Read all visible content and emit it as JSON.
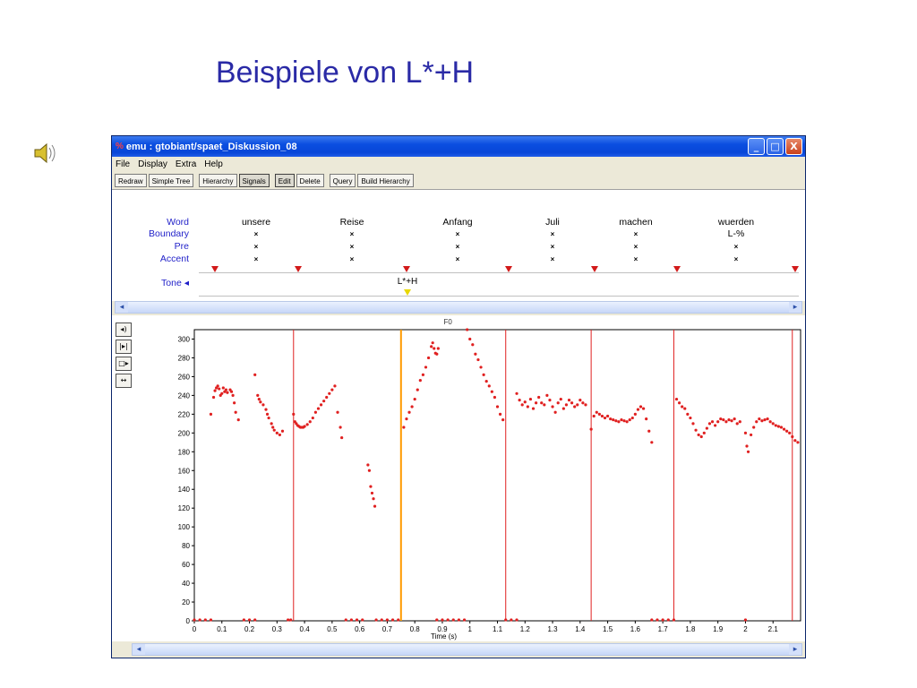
{
  "slide": {
    "title": "Beispiele von L*+H",
    "speaker_icon": "speaker-icon"
  },
  "window": {
    "title": "emu : gtobiant/spaet_Diskussion_08",
    "app_icon": "emu-app-icon",
    "buttons": [
      "_",
      "□",
      "X"
    ]
  },
  "menu": [
    "File",
    "Display",
    "Extra",
    "Help"
  ],
  "toolbar": [
    "Redraw",
    "Simple Tree",
    "Hierarchy",
    "Signals",
    "Edit",
    "Delete",
    "Query",
    "Build Hierarchy"
  ],
  "toolbar_active": [
    "Signals",
    "Edit"
  ],
  "tiers": {
    "labels": [
      "Word",
      "Boundary",
      "Pre",
      "Accent"
    ],
    "words": [
      "unsere",
      "Reise",
      "Anfang",
      "Juli",
      "machen",
      "wuerden"
    ],
    "boundary": [
      "×",
      "×",
      "×",
      "×",
      "×",
      "L-%"
    ],
    "pre": [
      "×",
      "×",
      "×",
      "×",
      "×",
      "×"
    ],
    "accent": [
      "×",
      "×",
      "×",
      "×",
      "×",
      "×"
    ],
    "tone_label": "Tone ◂",
    "tone_value": "L*+H"
  },
  "colors": {
    "accent_red": "#e02020",
    "tier_label_blue": "#1f1fc8",
    "orange_boundary": "#ff9a00"
  },
  "side_tools": [
    "speaker-volume-icon",
    "zoom-fit-icon",
    "zoom-right-icon",
    "zoom-out-icon"
  ],
  "chart_data": {
    "type": "scatter",
    "title": "F0",
    "xlabel": "Time (s)",
    "ylabel": "",
    "xlim": [
      0,
      2.2
    ],
    "ylim": [
      0,
      310
    ],
    "xticks": [
      0,
      0.1,
      0.2,
      0.3,
      0.4,
      0.5,
      0.6,
      0.7,
      0.8,
      0.9,
      1,
      1.1,
      1.2,
      1.3,
      1.4,
      1.5,
      1.6,
      1.7,
      1.8,
      1.9,
      2,
      2.1
    ],
    "yticks": [
      0,
      20,
      40,
      60,
      80,
      100,
      120,
      140,
      160,
      180,
      200,
      220,
      240,
      260,
      280,
      300
    ],
    "boundaries": [
      0.36,
      0.75,
      1.13,
      1.44,
      1.74,
      2.17
    ],
    "orange_boundary": 0.75,
    "series": [
      {
        "values": [
          [
            0.06,
            220
          ],
          [
            0.07,
            238
          ],
          [
            0.075,
            245
          ],
          [
            0.08,
            248
          ],
          [
            0.085,
            250
          ],
          [
            0.09,
            247
          ],
          [
            0.095,
            240
          ],
          [
            0.1,
            242
          ],
          [
            0.105,
            248
          ],
          [
            0.11,
            244
          ],
          [
            0.115,
            246
          ],
          [
            0.12,
            243
          ],
          [
            0.13,
            246
          ],
          [
            0.135,
            244
          ],
          [
            0.14,
            240
          ],
          [
            0.145,
            232
          ],
          [
            0.15,
            222
          ],
          [
            0.16,
            214
          ]
        ]
      },
      {
        "values": [
          [
            0.22,
            262
          ],
          [
            0.23,
            240
          ],
          [
            0.235,
            236
          ],
          [
            0.24,
            233
          ],
          [
            0.25,
            230
          ],
          [
            0.26,
            225
          ],
          [
            0.265,
            220
          ],
          [
            0.27,
            216
          ],
          [
            0.28,
            210
          ],
          [
            0.285,
            206
          ],
          [
            0.29,
            203
          ],
          [
            0.3,
            200
          ],
          [
            0.31,
            198
          ],
          [
            0.32,
            202
          ]
        ]
      },
      {
        "values": [
          [
            0.36,
            220
          ],
          [
            0.365,
            212
          ],
          [
            0.37,
            210
          ],
          [
            0.375,
            208
          ],
          [
            0.38,
            207
          ],
          [
            0.385,
            206
          ],
          [
            0.39,
            206
          ],
          [
            0.395,
            206
          ],
          [
            0.4,
            207
          ],
          [
            0.41,
            209
          ],
          [
            0.42,
            212
          ],
          [
            0.43,
            216
          ],
          [
            0.44,
            222
          ],
          [
            0.45,
            226
          ],
          [
            0.46,
            230
          ],
          [
            0.47,
            234
          ],
          [
            0.48,
            238
          ],
          [
            0.49,
            242
          ],
          [
            0.5,
            246
          ],
          [
            0.51,
            250
          ],
          [
            0.52,
            222
          ],
          [
            0.53,
            206
          ],
          [
            0.535,
            195
          ]
        ]
      },
      {
        "values": [
          [
            0.63,
            166
          ],
          [
            0.635,
            160
          ],
          [
            0.64,
            143
          ],
          [
            0.645,
            136
          ],
          [
            0.65,
            130
          ],
          [
            0.655,
            122
          ]
        ]
      },
      {
        "values": [
          [
            0.76,
            206
          ],
          [
            0.77,
            215
          ],
          [
            0.78,
            222
          ],
          [
            0.79,
            228
          ],
          [
            0.8,
            236
          ],
          [
            0.81,
            246
          ],
          [
            0.82,
            256
          ],
          [
            0.83,
            262
          ],
          [
            0.84,
            270
          ],
          [
            0.85,
            280
          ],
          [
            0.86,
            292
          ],
          [
            0.865,
            296
          ],
          [
            0.87,
            290
          ],
          [
            0.875,
            285
          ],
          [
            0.88,
            284
          ],
          [
            0.885,
            290
          ]
        ]
      },
      {
        "values": [
          [
            0.99,
            310
          ],
          [
            1.0,
            300
          ],
          [
            1.01,
            294
          ],
          [
            1.02,
            284
          ],
          [
            1.03,
            278
          ],
          [
            1.04,
            270
          ],
          [
            1.05,
            262
          ],
          [
            1.06,
            255
          ],
          [
            1.07,
            250
          ],
          [
            1.08,
            244
          ],
          [
            1.09,
            238
          ],
          [
            1.1,
            228
          ],
          [
            1.11,
            220
          ],
          [
            1.12,
            214
          ]
        ]
      },
      {
        "values": [
          [
            1.17,
            242
          ],
          [
            1.18,
            235
          ],
          [
            1.19,
            230
          ],
          [
            1.2,
            233
          ],
          [
            1.21,
            228
          ],
          [
            1.22,
            236
          ],
          [
            1.23,
            226
          ],
          [
            1.24,
            232
          ],
          [
            1.25,
            238
          ],
          [
            1.26,
            232
          ],
          [
            1.27,
            230
          ],
          [
            1.28,
            240
          ],
          [
            1.29,
            235
          ],
          [
            1.3,
            228
          ],
          [
            1.31,
            222
          ],
          [
            1.32,
            232
          ],
          [
            1.33,
            236
          ],
          [
            1.34,
            226
          ],
          [
            1.35,
            230
          ],
          [
            1.36,
            235
          ],
          [
            1.37,
            232
          ],
          [
            1.38,
            228
          ],
          [
            1.39,
            230
          ],
          [
            1.4,
            235
          ],
          [
            1.41,
            232
          ],
          [
            1.42,
            230
          ]
        ]
      },
      {
        "values": [
          [
            1.44,
            204
          ],
          [
            1.45,
            218
          ],
          [
            1.46,
            222
          ],
          [
            1.47,
            220
          ],
          [
            1.48,
            218
          ],
          [
            1.49,
            216
          ],
          [
            1.5,
            218
          ],
          [
            1.51,
            215
          ],
          [
            1.52,
            214
          ],
          [
            1.53,
            213
          ],
          [
            1.54,
            212
          ],
          [
            1.55,
            214
          ],
          [
            1.56,
            213
          ],
          [
            1.57,
            212
          ],
          [
            1.58,
            214
          ],
          [
            1.59,
            216
          ],
          [
            1.6,
            220
          ],
          [
            1.61,
            225
          ],
          [
            1.62,
            228
          ],
          [
            1.63,
            226
          ],
          [
            1.64,
            215
          ],
          [
            1.65,
            202
          ],
          [
            1.66,
            190
          ]
        ]
      },
      {
        "values": [
          [
            1.75,
            236
          ],
          [
            1.76,
            232
          ],
          [
            1.77,
            228
          ],
          [
            1.78,
            226
          ],
          [
            1.79,
            220
          ],
          [
            1.8,
            216
          ],
          [
            1.81,
            210
          ],
          [
            1.82,
            203
          ],
          [
            1.83,
            198
          ],
          [
            1.84,
            196
          ],
          [
            1.85,
            200
          ],
          [
            1.86,
            205
          ],
          [
            1.87,
            210
          ],
          [
            1.88,
            212
          ],
          [
            1.89,
            208
          ],
          [
            1.9,
            212
          ],
          [
            1.91,
            215
          ],
          [
            1.92,
            214
          ],
          [
            1.93,
            212
          ],
          [
            1.94,
            214
          ],
          [
            1.95,
            213
          ],
          [
            1.96,
            215
          ],
          [
            1.97,
            210
          ],
          [
            1.98,
            212
          ]
        ]
      },
      {
        "values": [
          [
            2.0,
            200
          ],
          [
            2.005,
            186
          ],
          [
            2.01,
            180
          ],
          [
            2.02,
            198
          ],
          [
            2.03,
            206
          ],
          [
            2.04,
            212
          ],
          [
            2.05,
            215
          ],
          [
            2.06,
            213
          ],
          [
            2.07,
            214
          ],
          [
            2.08,
            215
          ],
          [
            2.09,
            212
          ],
          [
            2.1,
            210
          ],
          [
            2.11,
            208
          ],
          [
            2.12,
            207
          ],
          [
            2.13,
            206
          ],
          [
            2.14,
            204
          ],
          [
            2.15,
            202
          ],
          [
            2.16,
            200
          ],
          [
            2.17,
            196
          ],
          [
            2.18,
            192
          ],
          [
            2.19,
            190
          ]
        ]
      },
      {
        "values": [
          [
            0.0,
            1
          ],
          [
            0.02,
            1
          ],
          [
            0.04,
            1
          ],
          [
            0.06,
            1
          ],
          [
            0.18,
            1
          ],
          [
            0.2,
            1
          ],
          [
            0.22,
            1
          ],
          [
            0.34,
            1
          ],
          [
            0.35,
            1
          ],
          [
            0.55,
            1
          ],
          [
            0.57,
            1
          ],
          [
            0.59,
            1
          ],
          [
            0.61,
            1
          ],
          [
            0.66,
            1
          ],
          [
            0.68,
            1
          ],
          [
            0.7,
            1
          ],
          [
            0.72,
            1
          ],
          [
            0.74,
            1
          ],
          [
            0.88,
            1
          ],
          [
            0.9,
            1
          ],
          [
            0.92,
            1
          ],
          [
            0.94,
            1
          ],
          [
            0.96,
            1
          ],
          [
            0.98,
            1
          ],
          [
            1.13,
            1
          ],
          [
            1.15,
            1
          ],
          [
            1.17,
            1
          ],
          [
            1.66,
            1
          ],
          [
            1.68,
            1
          ],
          [
            1.7,
            1
          ],
          [
            1.72,
            1
          ],
          [
            1.74,
            1
          ],
          [
            2.0,
            1
          ]
        ]
      }
    ]
  }
}
